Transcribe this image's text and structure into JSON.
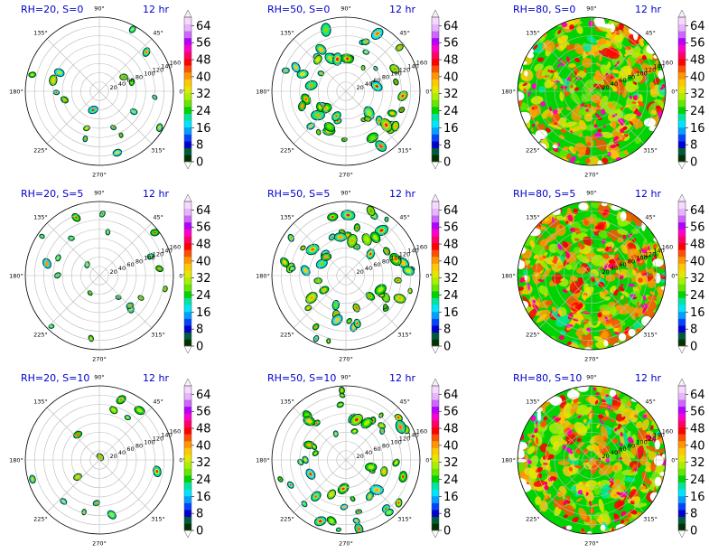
{
  "chart_data": {
    "type": "heatmap",
    "projection": "polar",
    "layout": {
      "rows": 3,
      "cols": 3
    },
    "angle_tick_labels": [
      "0°",
      "45°",
      "90°",
      "135°",
      "180°",
      "225°",
      "270°",
      "315°"
    ],
    "radial_tick_labels": [
      "20",
      "40",
      "60",
      "80",
      "100",
      "120",
      "140",
      "160"
    ],
    "radial_range": [
      0,
      160
    ],
    "grid": true,
    "colorbar": {
      "ticks": [
        "0",
        "8",
        "16",
        "24",
        "32",
        "40",
        "48",
        "56",
        "64"
      ],
      "range": [
        0,
        68
      ],
      "extend": "both",
      "bin_width": 4,
      "colors": [
        "#003300",
        "#005a3c",
        "#0000cc",
        "#0044ff",
        "#00a0ff",
        "#00e5ff",
        "#00e6a0",
        "#00d400",
        "#66e600",
        "#a8f000",
        "#e6e600",
        "#ffc800",
        "#ff9600",
        "#ff5000",
        "#ff0000",
        "#ff0066",
        "#ff00cc",
        "#b400ff",
        "#cc66ff",
        "#e8b3ff",
        "#f5d9ff"
      ]
    },
    "panels": [
      {
        "title": "RH=20, S=0",
        "time_label": "12 hr",
        "coverage": 0.1
      },
      {
        "title": "RH=50, S=0",
        "time_label": "12 hr",
        "coverage": 0.28
      },
      {
        "title": "RH=80, S=0",
        "time_label": "12 hr",
        "coverage": 0.97
      },
      {
        "title": "RH=20, S=5",
        "time_label": "12 hr",
        "coverage": 0.11
      },
      {
        "title": "RH=50, S=5",
        "time_label": "12 hr",
        "coverage": 0.3
      },
      {
        "title": "RH=80, S=5",
        "time_label": "12 hr",
        "coverage": 0.95
      },
      {
        "title": "RH=20, S=10",
        "time_label": "12 hr",
        "coverage": 0.07
      },
      {
        "title": "RH=50, S=10",
        "time_label": "12 hr",
        "coverage": 0.27
      },
      {
        "title": "RH=80, S=10",
        "time_label": "12 hr",
        "coverage": 0.96
      }
    ]
  }
}
